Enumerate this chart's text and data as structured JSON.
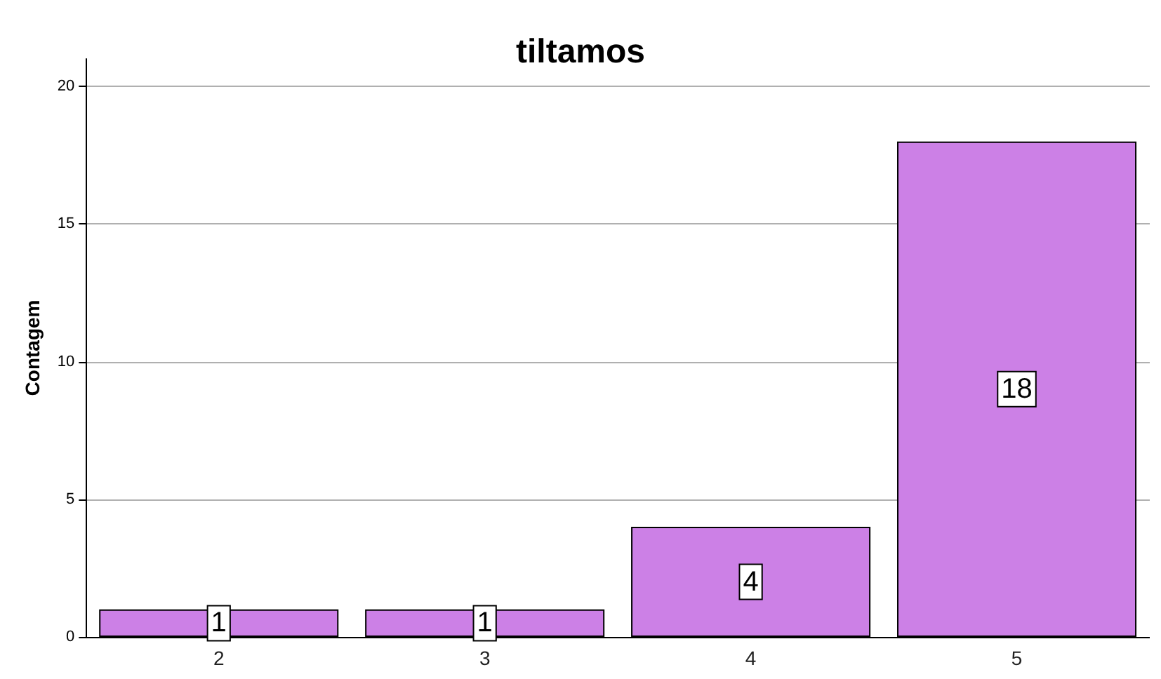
{
  "chart_data": {
    "type": "bar",
    "title": "tiltamos",
    "ylabel": "Contagem",
    "categories": [
      "2",
      "3",
      "4",
      "5"
    ],
    "values": [
      1,
      1,
      4,
      18
    ],
    "color": "#cc80e6",
    "ylim": [
      0,
      21
    ],
    "yticks": [
      0,
      5,
      10,
      15,
      20
    ],
    "grid": "y",
    "data_labels": true
  }
}
